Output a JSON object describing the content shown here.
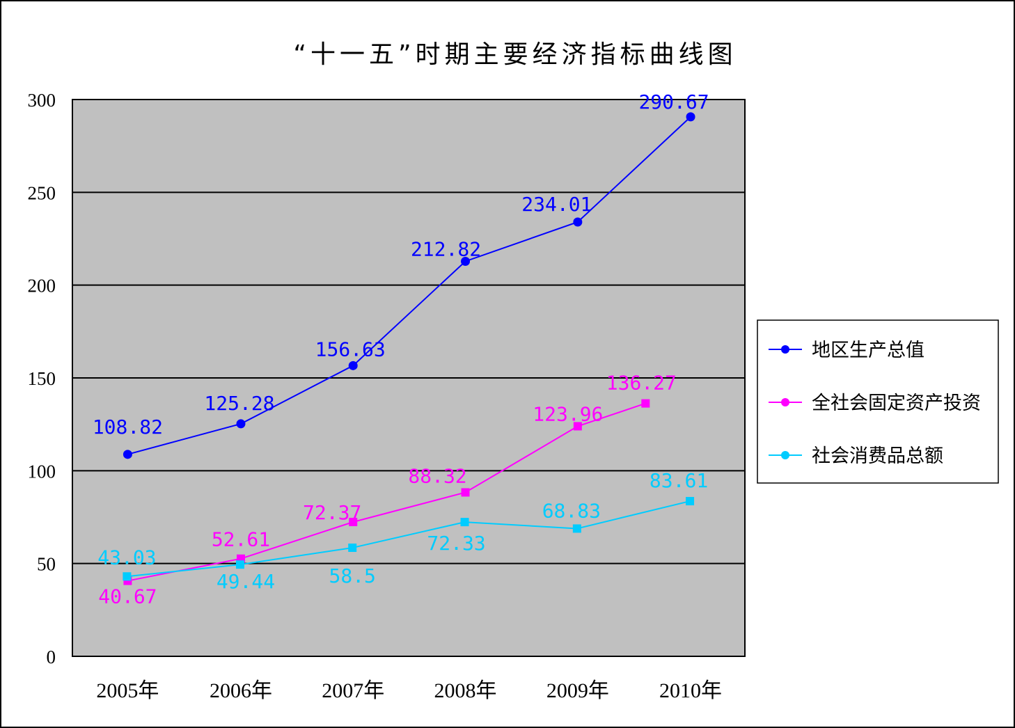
{
  "chart_data": {
    "type": "line",
    "title": "“十一五”时期主要经济指标曲线图",
    "xlabel": "",
    "ylabel": "",
    "categories": [
      "2005年",
      "2006年",
      "2007年",
      "2008年",
      "2009年",
      "2010年"
    ],
    "ylim": [
      0,
      300
    ],
    "yticks": [
      0,
      50,
      100,
      150,
      200,
      250,
      300
    ],
    "grid": "horizontal",
    "legend_position": "right",
    "series": [
      {
        "name": "地区生产总值",
        "marker": "circle",
        "color": "#0000ff",
        "values": [
          108.82,
          125.28,
          156.63,
          212.82,
          234.01,
          290.67
        ],
        "labels": [
          "108.82",
          "125.28",
          "156.63",
          "212.82",
          "234.01",
          "290.67"
        ]
      },
      {
        "name": "全社会固定资产投资",
        "marker": "square",
        "color": "#ff00ff",
        "values": [
          40.67,
          52.61,
          72.37,
          88.32,
          123.96,
          136.27
        ],
        "labels": [
          "40.67",
          "52.61",
          "72.37",
          "88.32",
          "123.96",
          "136.27"
        ]
      },
      {
        "name": "社会消费品总额",
        "marker": "square",
        "color": "#00ccff",
        "values": [
          43.03,
          49.44,
          58.5,
          72.33,
          68.83,
          83.61
        ],
        "labels": [
          "43.03",
          "49.44",
          "58.5",
          "72.33",
          "68.83",
          "83.61"
        ]
      }
    ]
  }
}
